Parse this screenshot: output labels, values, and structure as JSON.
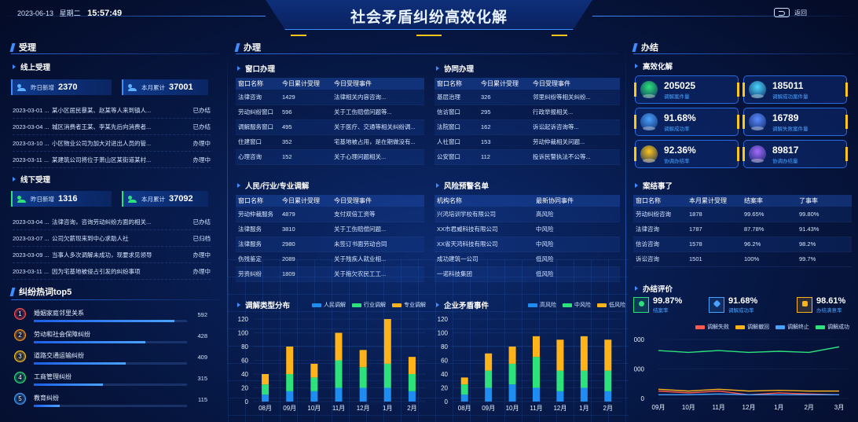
{
  "header": {
    "date": "2023-06-13",
    "weekday": "星期二",
    "time": "15:57:49",
    "title": "社会矛盾纠纷高效化解",
    "back_label": "返回"
  },
  "sections": {
    "accept": "受理",
    "handle": "办理",
    "finish": "办结"
  },
  "online": {
    "title": "线上受理",
    "yesterday_label": "昨日新增",
    "yesterday": "2370",
    "month_label": "本月累计",
    "month": "37001",
    "items": [
      {
        "date": "2023-03-01 ...",
        "text": "某小区居民暴某、赵某等人来到镇人...",
        "status": "已办结"
      },
      {
        "date": "2023-03-04 ...",
        "text": "城区消费者王某、李某先后向消费者...",
        "status": "已办结"
      },
      {
        "date": "2023-03-10 ...",
        "text": "小区物业公司为加大对进出人员的管...",
        "status": "办理中"
      },
      {
        "date": "2023-03-11 ...",
        "text": "某建筑公司将位于萧山区某街道某村...",
        "status": "办理中"
      }
    ]
  },
  "offline": {
    "title": "线下受理",
    "yesterday_label": "昨日新增",
    "yesterday": "1316",
    "month_label": "本月累计",
    "month": "37092",
    "items": [
      {
        "date": "2023-03-04 ...",
        "text": "法律咨询，咨询劳动纠纷方面的相关...",
        "status": "已办结"
      },
      {
        "date": "2023-03-07 ...",
        "text": "公司欠薪现来到中心求助人社",
        "status": "已归档"
      },
      {
        "date": "2023-03-09 ...",
        "text": "当事人多次调解未成功，现要求见领导",
        "status": "办理中"
      },
      {
        "date": "2023-03-11 ...",
        "text": "因为宅基地被侵占引发的纠纷事项",
        "status": "办理中"
      }
    ]
  },
  "hot": {
    "title": "纠纷热词top5",
    "items": [
      {
        "rank": "1",
        "name": "婚姻家庭邻里关系",
        "count": "592",
        "frac": 0.92,
        "color": "#ff4d4d"
      },
      {
        "rank": "2",
        "name": "劳动和社会保障纠纷",
        "count": "428",
        "frac": 0.73,
        "color": "#ff9a1a"
      },
      {
        "rank": "3",
        "name": "道路交通运输纠纷",
        "count": "409",
        "frac": 0.6,
        "color": "#ffc61a"
      },
      {
        "rank": "4",
        "name": "工商管理纠纷",
        "count": "315",
        "frac": 0.45,
        "color": "#2de27a"
      },
      {
        "rank": "5",
        "name": "教育纠纷",
        "count": "115",
        "frac": 0.17,
        "color": "#4aa2ff"
      }
    ]
  },
  "window": {
    "title": "窗口办理",
    "headers": [
      "窗口名称",
      "今日累计受理",
      "今日受理事件"
    ],
    "rows": [
      [
        "法律咨询",
        "1429",
        "法律相关内容咨询..."
      ],
      [
        "劳动纠纷窗口",
        "596",
        "关于工伤赔偿问题等..."
      ],
      [
        "调解服务窗口",
        "495",
        "关于医疗、交通等相关纠纷调..."
      ],
      [
        "住建窗口",
        "352",
        "宅基地被占用，是在期做没有..."
      ],
      [
        "心理咨询",
        "152",
        "关于心理问题相关..."
      ]
    ]
  },
  "coop": {
    "title": "协同办理",
    "headers": [
      "窗口名称",
      "今日累计受理",
      "今日受理事件"
    ],
    "rows": [
      [
        "基层治理",
        "326",
        "邻里纠纷等相关纠纷..."
      ],
      [
        "信访窗口",
        "295",
        "行政举报相关..."
      ],
      [
        "法院窗口",
        "162",
        "诉讼起诉咨询等..."
      ],
      [
        "人社窗口",
        "153",
        "劳动仲裁相关问题..."
      ],
      [
        "公安窗口",
        "112",
        "投诉民警执法不公等..."
      ]
    ]
  },
  "mediation": {
    "title": "人民/行业/专业调解",
    "headers": [
      "窗口名称",
      "今日累计受理",
      "今日受理事件"
    ],
    "rows": [
      [
        "劳动仲裁服务",
        "4879",
        "支付双倍工资等"
      ],
      [
        "法律服务",
        "3810",
        "关于工伤赔偿问题..."
      ],
      [
        "法律服务",
        "2980",
        "未签订书面劳动合同"
      ],
      [
        "伤残鉴定",
        "2089",
        "关于残疾人就业相..."
      ],
      [
        "劳资纠纷",
        "1809",
        "关于拖欠农民工工..."
      ]
    ]
  },
  "risk": {
    "title": "风险预警名单",
    "headers": [
      "机构名称",
      "最新协同事件"
    ],
    "rows": [
      [
        "兴鸿培训学校有限公司",
        "高风险"
      ],
      [
        "XX市君威科技有限公司",
        "中风险"
      ],
      [
        "XX省天鸿科技有限公司",
        "中风险"
      ],
      [
        "成功建筑一公司",
        "低风险"
      ],
      [
        "一诺科技集团",
        "低风险"
      ]
    ]
  },
  "kpis": [
    {
      "value": "205025",
      "label": "调解案件量",
      "color": "#2de27a"
    },
    {
      "value": "185011",
      "label": "调解成功案件量",
      "color": "#4ad6ff"
    },
    {
      "value": "91.68%",
      "label": "调解成功率",
      "color": "#4aa2ff"
    },
    {
      "value": "16789",
      "label": "调解失败案件量",
      "color": "#5a8bff"
    },
    {
      "value": "92.36%",
      "label": "协调办结率",
      "color": "#ffc61a"
    },
    {
      "value": "89817",
      "label": "协调办结量",
      "color": "#a36bff"
    }
  ],
  "finish_title": "高效化解",
  "close": {
    "title": "案结事了",
    "headers": [
      "窗口名称",
      "本月累计受理",
      "结案率",
      "了事率"
    ],
    "rows": [
      [
        "劳动纠纷咨询",
        "1878",
        "99.65%",
        "99.80%"
      ],
      [
        "法律咨询",
        "1787",
        "87.78%",
        "91.43%"
      ],
      [
        "信访咨询",
        "1578",
        "96.2%",
        "98.2%"
      ],
      [
        "诉讼咨询",
        "1501",
        "100%",
        "99.7%"
      ]
    ]
  },
  "evaluation": {
    "title": "办结评价",
    "items": [
      {
        "value": "99.87%",
        "label": "结案率"
      },
      {
        "value": "91.68%",
        "label": "调解成功率"
      },
      {
        "value": "98.61%",
        "label": "办结满意率"
      }
    ]
  },
  "chart_data": [
    {
      "type": "bar",
      "title": "调解类型分布",
      "categories": [
        "08月",
        "09月",
        "10月",
        "11月",
        "12月",
        "1月",
        "2月"
      ],
      "ylim": [
        0,
        120
      ],
      "yticks": [
        0,
        20,
        40,
        60,
        80,
        100,
        120
      ],
      "series": [
        {
          "name": "人民调解",
          "color": "#1e8cf0",
          "values": [
            10,
            15,
            15,
            20,
            20,
            20,
            15
          ]
        },
        {
          "name": "行业调解",
          "color": "#2de27a",
          "values": [
            15,
            25,
            20,
            40,
            30,
            35,
            25
          ]
        },
        {
          "name": "专业调解",
          "color": "#ffb31a",
          "values": [
            15,
            40,
            20,
            40,
            25,
            65,
            25
          ]
        }
      ]
    },
    {
      "type": "bar",
      "title": "企业矛盾事件",
      "categories": [
        "08月",
        "09月",
        "10月",
        "11月",
        "12月",
        "1月",
        "2月"
      ],
      "ylim": [
        0,
        120
      ],
      "yticks": [
        0,
        20,
        40,
        60,
        80,
        100,
        120
      ],
      "series": [
        {
          "name": "高风险",
          "color": "#1e8cf0",
          "values": [
            10,
            20,
            25,
            20,
            15,
            20,
            15
          ]
        },
        {
          "name": "中风险",
          "color": "#2de27a",
          "values": [
            15,
            25,
            30,
            45,
            30,
            25,
            30
          ]
        },
        {
          "name": "低风险",
          "color": "#ffb31a",
          "values": [
            10,
            25,
            25,
            30,
            45,
            50,
            45
          ]
        }
      ]
    },
    {
      "type": "line",
      "categories": [
        "09月",
        "10月",
        "11月",
        "12月",
        "1月",
        "2月",
        "3月"
      ],
      "ytick_labels": [
        "000",
        "000",
        "0"
      ],
      "series": [
        {
          "name": "调解失败",
          "color": "#ff5a4d",
          "values": [
            0.2,
            0.15,
            0.2,
            0.1,
            0.15,
            0.12,
            0.1
          ]
        },
        {
          "name": "调解撤回",
          "color": "#ffb31a",
          "values": [
            0.25,
            0.2,
            0.25,
            0.2,
            0.22,
            0.2,
            0.2
          ]
        },
        {
          "name": "调解终止",
          "color": "#4aa2ff",
          "values": [
            0.1,
            0.1,
            0.12,
            0.1,
            0.1,
            0.1,
            0.1
          ]
        },
        {
          "name": "调解成功",
          "color": "#2de27a",
          "values": [
            1.3,
            1.25,
            1.3,
            1.25,
            1.28,
            1.25,
            1.4
          ]
        }
      ]
    }
  ]
}
